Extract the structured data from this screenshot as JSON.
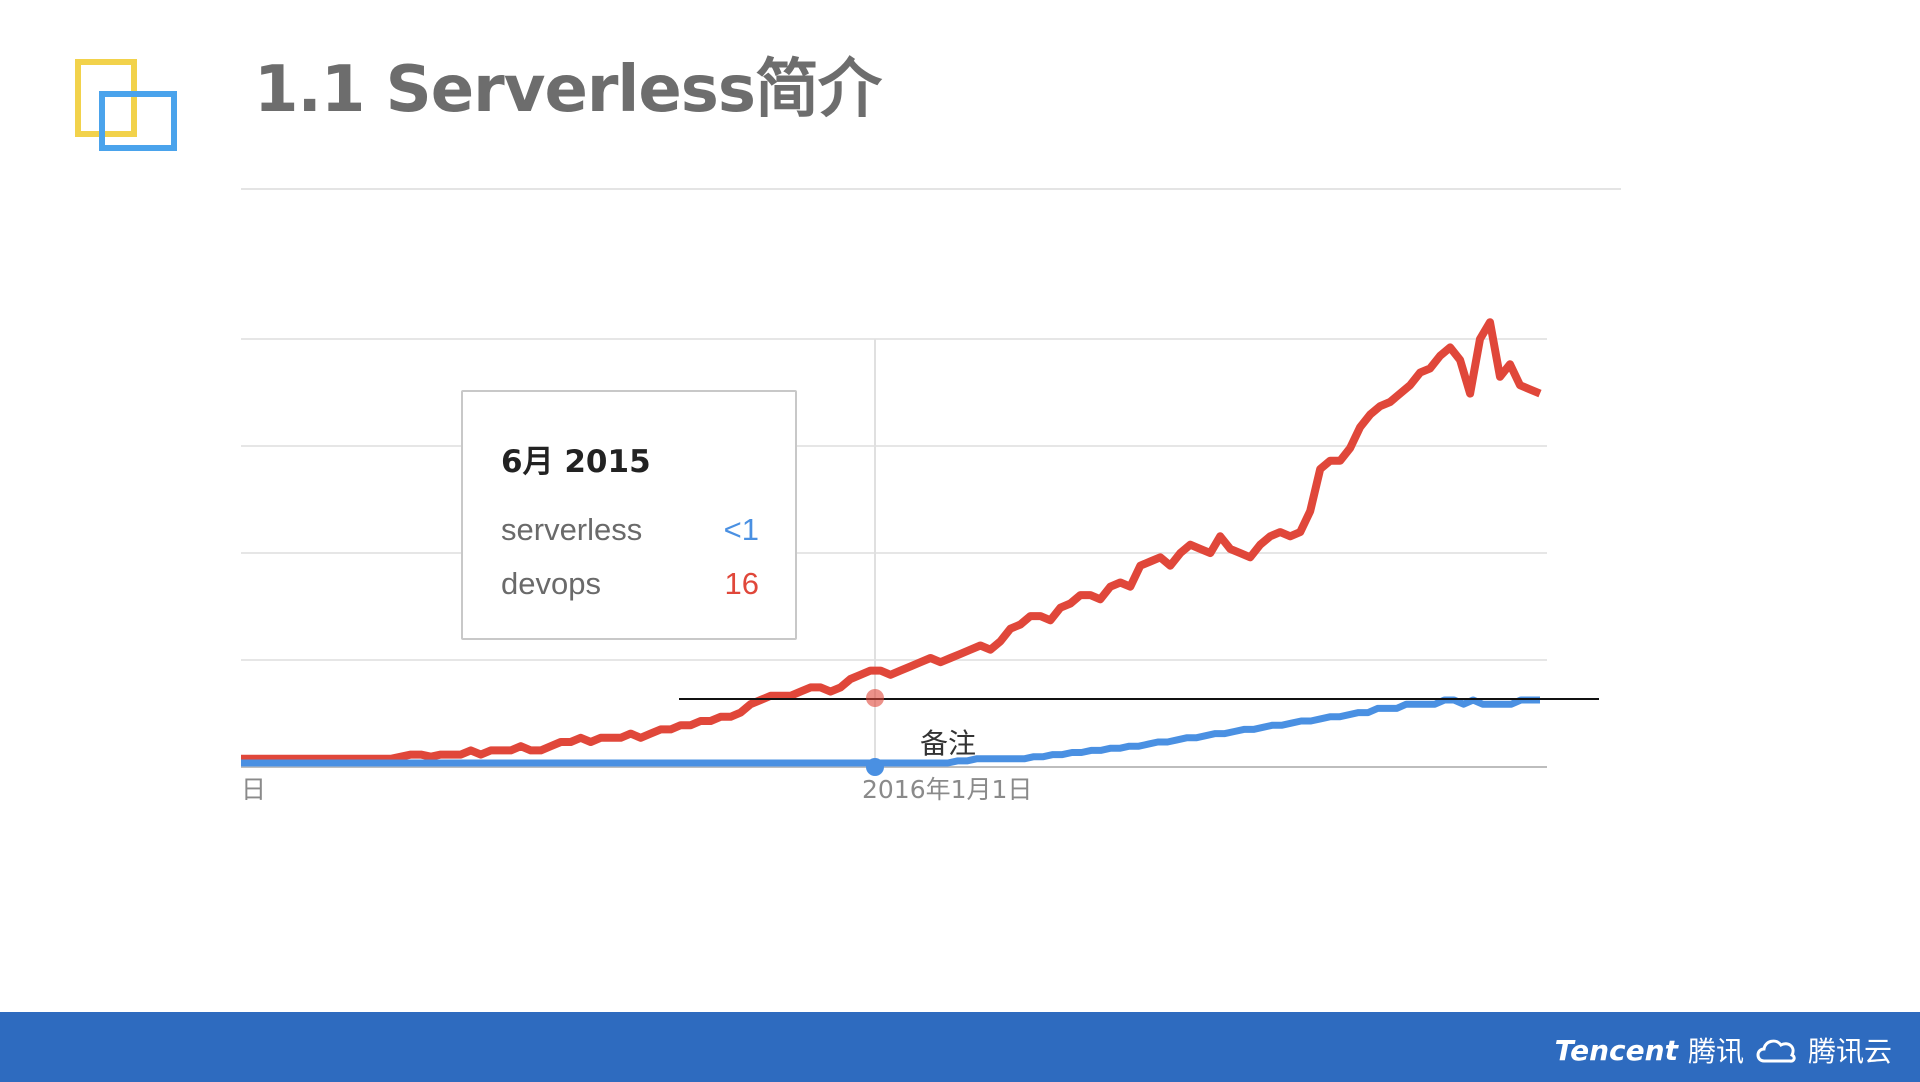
{
  "slide": {
    "title": "1.1 Serverless简介"
  },
  "tooltip": {
    "title": "6月 2015",
    "rows": [
      {
        "name": "serverless",
        "value": "<1",
        "color": "#4a90e2"
      },
      {
        "name": "devops",
        "value": "16",
        "color": "#e0473a"
      }
    ]
  },
  "annotation": {
    "note_label": "备注"
  },
  "footer": {
    "brand_tencent": "Tencent",
    "brand_tencent_cn": "腾讯",
    "brand_cloud": "腾讯云",
    "background": "#2e6bbf"
  },
  "logo": {
    "colors": [
      "#f2d24b",
      "#4aa3ec"
    ]
  },
  "chart_data": {
    "type": "line",
    "tick_labels": [
      "日",
      "2016年1月1日"
    ],
    "series": [
      {
        "name": "serverless",
        "color": "#4a90e2",
        "values": [
          0,
          0,
          0,
          0,
          0,
          0,
          0,
          0,
          0,
          0,
          0,
          0,
          0,
          0,
          0,
          0,
          0,
          0,
          0,
          0,
          0,
          0,
          0,
          0,
          0,
          0,
          0,
          0,
          0,
          0,
          0,
          0,
          0,
          0,
          0,
          0,
          0,
          0,
          0,
          0,
          0,
          0,
          0,
          0,
          0,
          0,
          0,
          0,
          0,
          0,
          0,
          0,
          0,
          0,
          0,
          0,
          0,
          0,
          0,
          0,
          0,
          0,
          0,
          0,
          0,
          0,
          0,
          0,
          0,
          0,
          0,
          0,
          0,
          0,
          0,
          0.5,
          0.5,
          1,
          1,
          1,
          1,
          1,
          1,
          1.5,
          1.5,
          2,
          2,
          2.5,
          2.5,
          3,
          3,
          3.5,
          3.5,
          4,
          4,
          4.5,
          5,
          5,
          5.5,
          6,
          6,
          6.5,
          7,
          7,
          7.5,
          8,
          8,
          8.5,
          9,
          9,
          9.5,
          10,
          10,
          10.5,
          11,
          11,
          11.5,
          12,
          12,
          13,
          13,
          13,
          14,
          14,
          14,
          14,
          15,
          15,
          14,
          15,
          14,
          14,
          14,
          14,
          15,
          15,
          15
        ]
      },
      {
        "name": "devops",
        "color": "#e0473a",
        "values": [
          1,
          1,
          1,
          1,
          1,
          1,
          1,
          1,
          1,
          1,
          1,
          1,
          1,
          1,
          1,
          1,
          1.5,
          2,
          2,
          1.5,
          2,
          2,
          2,
          3,
          2,
          3,
          3,
          3,
          4,
          3,
          3,
          4,
          5,
          5,
          6,
          5,
          6,
          6,
          6,
          7,
          6,
          7,
          8,
          8,
          9,
          9,
          10,
          10,
          11,
          11,
          12,
          14,
          15,
          16,
          16,
          16,
          17,
          18,
          18,
          17,
          18,
          20,
          21,
          22,
          22,
          21,
          22,
          23,
          24,
          25,
          24,
          25,
          26,
          27,
          28,
          27,
          29,
          32,
          33,
          35,
          35,
          34,
          37,
          38,
          40,
          40,
          39,
          42,
          43,
          42,
          47,
          48,
          49,
          47,
          50,
          52,
          51,
          50,
          54,
          51,
          50,
          49,
          52,
          54,
          55,
          54,
          55,
          60,
          70,
          72,
          72,
          75,
          80,
          83,
          85,
          86,
          88,
          90,
          93,
          94,
          97,
          99,
          96,
          88,
          101,
          105,
          92,
          95,
          90,
          89,
          88
        ]
      }
    ]
  }
}
